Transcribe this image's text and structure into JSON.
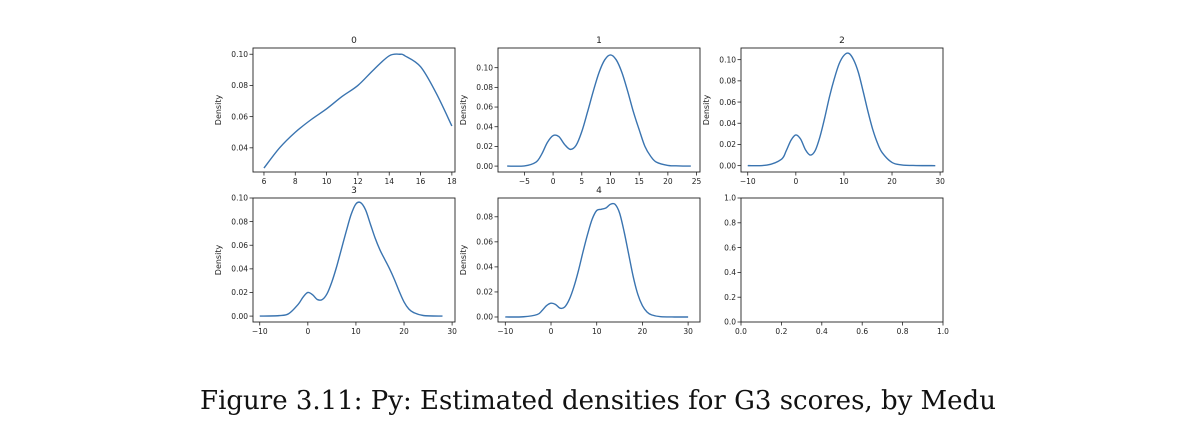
{
  "caption": "Figure 3.11: Py: Estimated densities for G3 scores, by Medu",
  "colors": {
    "line": "#3a74b0",
    "axis": "#222222"
  },
  "chart_data": [
    {
      "type": "line",
      "title": "0",
      "xlabel": "",
      "ylabel": "Density",
      "xlim": [
        5.3,
        18.2
      ],
      "ylim": [
        0.0245,
        0.104
      ],
      "xticks": [
        6,
        8,
        10,
        12,
        14,
        16,
        18
      ],
      "xticklabels": [
        "6",
        "8",
        "10",
        "12",
        "14",
        "16",
        "18"
      ],
      "yticks": [
        0.04,
        0.06,
        0.08,
        0.1
      ],
      "yticklabels": [
        "0.04",
        "0.06",
        "0.08",
        "0.10"
      ],
      "x": [
        6,
        7,
        8,
        9,
        10,
        11,
        12,
        13,
        14,
        14.7,
        15,
        16,
        17,
        18
      ],
      "y": [
        0.027,
        0.04,
        0.05,
        0.058,
        0.065,
        0.073,
        0.08,
        0.09,
        0.099,
        0.1,
        0.099,
        0.092,
        0.075,
        0.054
      ]
    },
    {
      "type": "line",
      "title": "1",
      "xlabel": "",
      "ylabel": "Density",
      "xlim": [
        -9.6,
        25.6
      ],
      "ylim": [
        -0.006,
        0.12
      ],
      "xticks": [
        -5,
        0,
        5,
        10,
        15,
        20,
        25
      ],
      "xticklabels": [
        "−5",
        "0",
        "5",
        "10",
        "15",
        "20",
        "25"
      ],
      "yticks": [
        0.0,
        0.02,
        0.04,
        0.06,
        0.08,
        0.1
      ],
      "yticklabels": [
        "0.00",
        "0.02",
        "0.04",
        "0.06",
        "0.08",
        "0.10"
      ],
      "x": [
        -8,
        -5,
        -3,
        -2,
        -1,
        0,
        1,
        2,
        3,
        4,
        5,
        6,
        7,
        8,
        9,
        10,
        11,
        12,
        13,
        14,
        15,
        16,
        17,
        18,
        20,
        22,
        24
      ],
      "y": [
        0,
        0.0002,
        0.004,
        0.012,
        0.024,
        0.031,
        0.03,
        0.022,
        0.017,
        0.021,
        0.035,
        0.055,
        0.076,
        0.095,
        0.108,
        0.113,
        0.108,
        0.095,
        0.076,
        0.055,
        0.037,
        0.02,
        0.01,
        0.004,
        0.0007,
        0.0002,
        0
      ]
    },
    {
      "type": "line",
      "title": "2",
      "xlabel": "",
      "ylabel": "Density",
      "xlim": [
        -11.4,
        30.6
      ],
      "ylim": [
        -0.006,
        0.111
      ],
      "xticks": [
        -10,
        0,
        10,
        20,
        30
      ],
      "xticklabels": [
        "−10",
        "0",
        "10",
        "20",
        "30"
      ],
      "yticks": [
        0.0,
        0.02,
        0.04,
        0.06,
        0.08,
        0.1
      ],
      "yticklabels": [
        "0.00",
        "0.02",
        "0.04",
        "0.06",
        "0.08",
        "0.10"
      ],
      "x": [
        -10,
        -6,
        -3,
        -2,
        -1,
        0,
        1,
        2,
        3,
        4,
        5,
        6,
        7,
        8,
        9,
        10,
        11,
        12,
        13,
        14,
        15,
        16,
        17,
        18,
        20,
        22,
        25,
        29
      ],
      "y": [
        0,
        0.0005,
        0.006,
        0.014,
        0.024,
        0.029,
        0.025,
        0.015,
        0.01,
        0.014,
        0.027,
        0.045,
        0.065,
        0.082,
        0.096,
        0.104,
        0.106,
        0.1,
        0.088,
        0.07,
        0.051,
        0.034,
        0.021,
        0.012,
        0.003,
        0.0007,
        0.0001,
        0
      ]
    },
    {
      "type": "line",
      "title": "3",
      "xlabel": "",
      "ylabel": "Density",
      "xlim": [
        -11.4,
        30.6
      ],
      "ylim": [
        -0.005,
        0.1
      ],
      "xticks": [
        -10,
        0,
        10,
        20,
        30
      ],
      "xticklabels": [
        "−10",
        "0",
        "10",
        "20",
        "30"
      ],
      "yticks": [
        0.0,
        0.02,
        0.04,
        0.06,
        0.08,
        0.1
      ],
      "yticklabels": [
        "0.00",
        "0.02",
        "0.04",
        "0.06",
        "0.08",
        "0.10"
      ],
      "x": [
        -10,
        -6,
        -4,
        -2,
        -1,
        0,
        1,
        2,
        3,
        4,
        5,
        6,
        7,
        8,
        9,
        10,
        11,
        12,
        13,
        14,
        15,
        16,
        17,
        18,
        19,
        20,
        21,
        22,
        24,
        28
      ],
      "y": [
        0,
        0.0004,
        0.002,
        0.01,
        0.016,
        0.02,
        0.018,
        0.014,
        0.014,
        0.019,
        0.029,
        0.042,
        0.057,
        0.072,
        0.086,
        0.095,
        0.096,
        0.09,
        0.078,
        0.066,
        0.056,
        0.048,
        0.04,
        0.031,
        0.021,
        0.012,
        0.006,
        0.003,
        0.0005,
        0
      ]
    },
    {
      "type": "line",
      "title": "4",
      "xlabel": "",
      "ylabel": "Density",
      "xlim": [
        -11.6,
        32.6
      ],
      "ylim": [
        -0.004,
        0.095
      ],
      "xticks": [
        -10,
        0,
        10,
        20,
        30
      ],
      "xticklabels": [
        "−10",
        "0",
        "10",
        "20",
        "30"
      ],
      "yticks": [
        0.0,
        0.02,
        0.04,
        0.06,
        0.08
      ],
      "yticklabels": [
        "0.00",
        "0.02",
        "0.04",
        "0.06",
        "0.08"
      ],
      "x": [
        -10,
        -6,
        -3,
        -2,
        -1,
        0,
        1,
        2,
        3,
        4,
        5,
        6,
        7,
        8,
        9,
        10,
        11,
        12,
        13,
        14,
        15,
        16,
        17,
        18,
        19,
        20,
        21,
        22,
        24,
        27,
        30
      ],
      "y": [
        0,
        0.0002,
        0.002,
        0.005,
        0.009,
        0.011,
        0.01,
        0.007,
        0.008,
        0.014,
        0.024,
        0.037,
        0.052,
        0.066,
        0.078,
        0.085,
        0.086,
        0.087,
        0.09,
        0.09,
        0.083,
        0.068,
        0.05,
        0.032,
        0.018,
        0.009,
        0.004,
        0.0017,
        0.0002,
        0,
        0
      ]
    },
    {
      "type": "line",
      "title": "",
      "xlabel": "",
      "ylabel": "",
      "empty": true,
      "xlim": [
        0,
        1
      ],
      "ylim": [
        0,
        1
      ],
      "xticks": [
        0,
        0.2,
        0.4,
        0.6,
        0.8,
        1.0
      ],
      "xticklabels": [
        "0.0",
        "0.2",
        "0.4",
        "0.6",
        "0.8",
        "1.0"
      ],
      "yticks": [
        0,
        0.2,
        0.4,
        0.6,
        0.8,
        1.0
      ],
      "yticklabels": [
        "0.0",
        "0.2",
        "0.4",
        "0.6",
        "0.8",
        "1.0"
      ],
      "x": [],
      "y": []
    }
  ]
}
